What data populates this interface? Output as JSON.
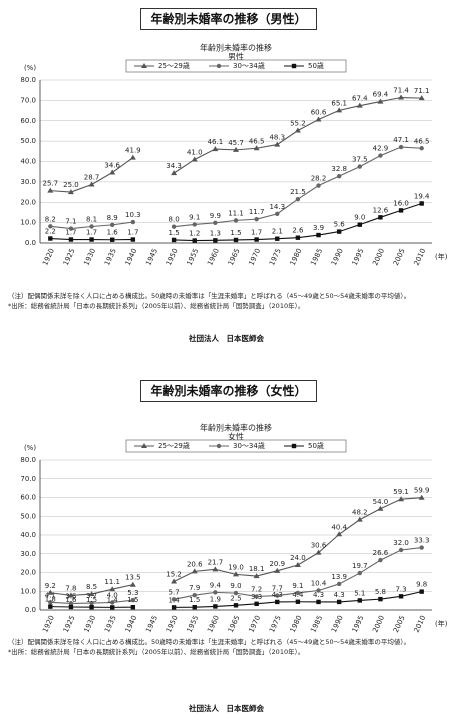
{
  "sections": [
    {
      "heading": "年齢別未婚率の推移（男性）",
      "note": "（注）配偶関係未詳を除く人口に占める構成比。50歳時の未婚率は「生涯未婚率」と呼ばれる（45～49歳と50～54歳未婚率の平均値）。",
      "source": "*出所：総務省統計局「日本の長期統計系列」（2005年以前）、総務省統計局「国勢調査」（2010年）。",
      "organization": "社団法人　日本医師会"
    },
    {
      "heading": "年齢別未婚率の推移（女性）",
      "note": "（注）配偶関係未詳を除く人口に占める構成比。50歳時の未婚率は「生涯未婚率」と呼ばれる（45～49歳と50～54歳未婚率の平均値）。",
      "source": "*出所：総務省統計局「日本の長期統計系列」（2005年以前）、総務省統計局「国勢調査」（2010年）。",
      "organization": "社団法人　日本医師会"
    }
  ],
  "chart_data": [
    {
      "type": "line",
      "title": "年齢別未婚率の推移",
      "subtitle": "男性",
      "y_unit": "(%)",
      "x_unit": "(年)",
      "categories": [
        "1920",
        "1925",
        "1930",
        "1935",
        "1940",
        "1945",
        "1950",
        "1955",
        "1960",
        "1965",
        "1970",
        "1975",
        "1980",
        "1985",
        "1990",
        "1995",
        "2000",
        "2005",
        "2010"
      ],
      "ylim": [
        0,
        80
      ],
      "yticks": [
        {
          "value": 0,
          "label": "0.0"
        },
        {
          "value": 10,
          "label": "10.0"
        },
        {
          "value": 20,
          "label": "20.0"
        },
        {
          "value": 30,
          "label": "30.0"
        },
        {
          "value": 40,
          "label": "40.0"
        },
        {
          "value": 50,
          "label": "50.0"
        },
        {
          "value": 60,
          "label": "60.0"
        },
        {
          "value": 70,
          "label": "70.0"
        },
        {
          "value": 80,
          "label": "80.0"
        }
      ],
      "grid": true,
      "series": [
        {
          "name": "25～29歳",
          "color": "#555555",
          "marker": "triangle",
          "values": [
            25.7,
            25.0,
            28.7,
            34.6,
            41.9,
            null,
            34.3,
            41.0,
            46.1,
            45.7,
            46.5,
            48.3,
            55.2,
            60.6,
            65.1,
            67.4,
            69.4,
            71.4,
            71.1
          ],
          "value_labels": [
            "25.7",
            "25.0",
            "28.7",
            "34.6",
            "41.9",
            null,
            "34.3",
            "41.0",
            "46.1",
            "45.7",
            "46.5",
            "48.3",
            "55.2",
            "60.6",
            "65.1",
            "67.4",
            "69.4",
            "71.4",
            "71.1"
          ]
        },
        {
          "name": "30～34歳",
          "color": "#666666",
          "marker": "circle",
          "values": [
            8.2,
            7.1,
            8.1,
            8.9,
            10.3,
            null,
            8.0,
            9.1,
            9.9,
            11.1,
            11.7,
            14.3,
            21.5,
            28.2,
            32.8,
            37.5,
            42.9,
            47.1,
            46.5
          ],
          "value_labels": [
            "8.2",
            "7.1",
            "8.1",
            "8.9",
            "10.3",
            null,
            "8.0",
            "9.1",
            "9.9",
            "11.1",
            "11.7",
            "14.3",
            "21.5",
            "28.2",
            "32.8",
            "37.5",
            "42.9",
            "47.1",
            "46.5"
          ]
        },
        {
          "name": "50歳",
          "color": "#111111",
          "marker": "square",
          "values": [
            2.2,
            1.7,
            1.7,
            1.6,
            1.7,
            null,
            1.5,
            1.2,
            1.3,
            1.5,
            1.7,
            2.1,
            2.6,
            3.9,
            5.6,
            9.0,
            12.6,
            16.0,
            19.4
          ],
          "value_labels": [
            "2.2",
            "1.7",
            "1.7",
            "1.6",
            "1.7",
            null,
            "1.5",
            "1.2",
            "1.3",
            "1.5",
            "1.7",
            "2.1",
            "2.6",
            "3.9",
            "5.6",
            "9.0",
            "12.6",
            "16.0",
            "19.4"
          ]
        }
      ]
    },
    {
      "type": "line",
      "title": "年齢別未婚率の推移",
      "subtitle": "女性",
      "y_unit": "(%)",
      "x_unit": "(年)",
      "categories": [
        "1920",
        "1925",
        "1930",
        "1935",
        "1940",
        "1945",
        "1950",
        "1955",
        "1960",
        "1965",
        "1970",
        "1975",
        "1980",
        "1985",
        "1990",
        "1995",
        "2000",
        "2005",
        "2010"
      ],
      "ylim": [
        0,
        80
      ],
      "yticks": [
        {
          "value": 0,
          "label": "0.0"
        },
        {
          "value": 10,
          "label": "10.0"
        },
        {
          "value": 20,
          "label": "20.0"
        },
        {
          "value": 30,
          "label": "30.0"
        },
        {
          "value": 40,
          "label": "40.0"
        },
        {
          "value": 50,
          "label": "50.0"
        },
        {
          "value": 60,
          "label": "60.0"
        },
        {
          "value": 70,
          "label": "70.0"
        },
        {
          "value": 80,
          "label": "80.0"
        }
      ],
      "grid": true,
      "series": [
        {
          "name": "25～29歳",
          "color": "#555555",
          "marker": "triangle",
          "values": [
            9.2,
            7.8,
            8.5,
            11.1,
            13.5,
            null,
            15.2,
            20.6,
            21.7,
            19.0,
            18.1,
            20.9,
            24.0,
            30.6,
            40.4,
            48.2,
            54.0,
            59.1,
            59.9
          ],
          "value_labels": [
            "9.2",
            "7.8",
            "8.5",
            "11.1",
            "13.5",
            null,
            "15.2",
            "20.6",
            "21.7",
            "19.0",
            "18.1",
            "20.9",
            "24.0",
            "30.6",
            "40.4",
            "48.2",
            "54.0",
            "59.1",
            "59.9"
          ]
        },
        {
          "name": "30～34歳",
          "color": "#666666",
          "marker": "circle",
          "values": [
            4.1,
            3.5,
            3.7,
            4.0,
            5.3,
            null,
            5.7,
            7.9,
            9.4,
            9.0,
            7.2,
            7.7,
            9.1,
            10.4,
            13.9,
            19.7,
            26.6,
            32.0,
            33.3
          ],
          "value_labels": [
            "4.1",
            "3.5",
            "3.7",
            "4.0",
            "5.3",
            null,
            "5.7",
            "7.9",
            "9.4",
            "9.0",
            "7.2",
            "7.7",
            "9.1",
            "10.4",
            "13.9",
            "19.7",
            "26.6",
            "32.0",
            "33.3"
          ]
        },
        {
          "name": "50歳",
          "color": "#111111",
          "marker": "square",
          "values": [
            1.8,
            1.6,
            1.5,
            1.4,
            1.5,
            null,
            1.4,
            1.5,
            1.9,
            2.5,
            3.3,
            4.3,
            4.4,
            4.3,
            4.3,
            5.1,
            5.8,
            7.3,
            9.8
          ],
          "value_labels": [
            "1.8",
            "1.6",
            "1.5",
            "1.4",
            "1.5",
            null,
            "1.4",
            "1.5",
            "1.9",
            "2.5",
            "3.3",
            "4.3",
            "4.4",
            "4.3",
            "4.3",
            "5.1",
            "5.8",
            "7.3",
            "9.8"
          ]
        }
      ]
    }
  ]
}
